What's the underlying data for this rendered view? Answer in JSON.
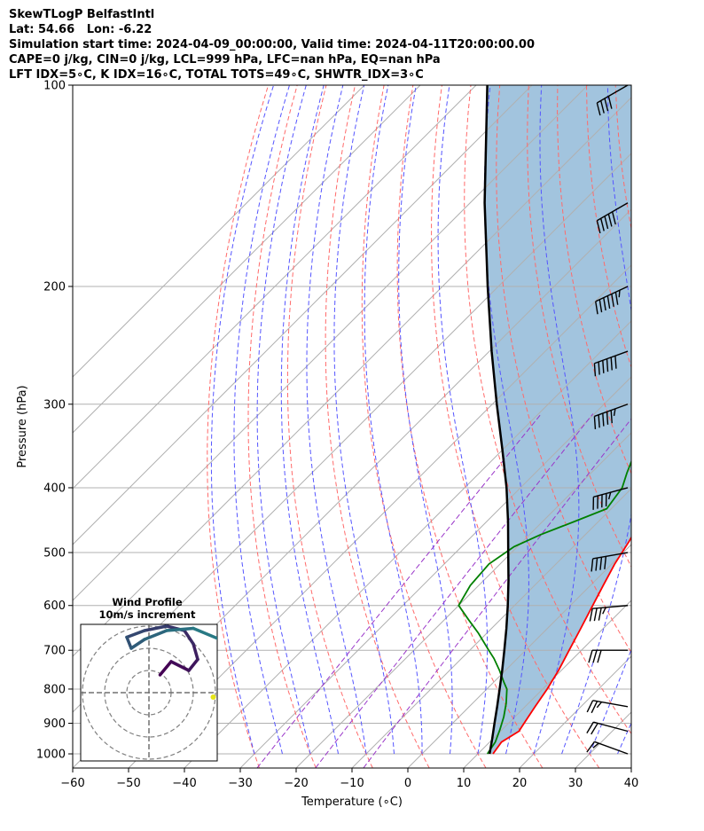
{
  "header": {
    "line1": "SkewTLogP BelfastIntl",
    "line2": "Lat: 54.66   Lon: -6.22",
    "line3": "Simulation start time: 2024-04-09_00:00:00, Valid time: 2024-04-11T20:00:00.00",
    "line4": "CAPE=0 j/kg, CIN=0 j/kg, LCL=999 hPa, LFC=nan hPa, EQ=nan hPa",
    "line5": "LFT IDX=5∘C, K IDX=16∘C, TOTAL TOTS=49∘C, SHWTR_IDX=3∘C"
  },
  "chart_data": {
    "type": "line",
    "title": "SkewTLogP BelfastIntl",
    "xlabel": "Temperature (∘C)",
    "ylabel": "Pressure (hPa)",
    "xlim": [
      -60,
      40
    ],
    "ylim": [
      1050,
      100
    ],
    "yscale": "log",
    "skew": "temperature lines skewed 45° to the right",
    "x_ticks": [
      "−60",
      "−50",
      "−40",
      "−30",
      "−20",
      "−10",
      "0",
      "10",
      "20",
      "30",
      "40"
    ],
    "y_ticks": [
      "100",
      "200",
      "300",
      "400",
      "500",
      "600",
      "700",
      "800",
      "900",
      "1000"
    ],
    "grid": true,
    "colors": {
      "temperature": "#ff0000",
      "dewpoint": "#008000",
      "parcel": "#000000",
      "shading": "#a2c4de",
      "dry_adiabat": "#ff6a6a",
      "moist_adiabat": "#5555ff",
      "mixing_ratio": "#9a36c9",
      "isotherm": "#b0b0b0",
      "wind_barb": "#000000"
    },
    "series": [
      {
        "name": "Temperature",
        "points": [
          [
            1000,
            12.7
          ],
          [
            960,
            12.1
          ],
          [
            925,
            13.3
          ],
          [
            900,
            12.8
          ],
          [
            850,
            11.8
          ],
          [
            800,
            10.8
          ],
          [
            750,
            9.5
          ],
          [
            700,
            7.8
          ],
          [
            650,
            6.0
          ],
          [
            600,
            4.0
          ],
          [
            560,
            2.3
          ],
          [
            520,
            0.5
          ],
          [
            480,
            -1.0
          ],
          [
            450,
            -2.5
          ],
          [
            420,
            -3.9
          ],
          [
            400,
            -5.0
          ],
          [
            370,
            -7.4
          ],
          [
            350,
            -9.4
          ],
          [
            320,
            -12.3
          ],
          [
            300,
            -14.4
          ],
          [
            280,
            -17.0
          ],
          [
            260,
            -19.7
          ],
          [
            245,
            -21.6
          ],
          [
            230,
            -23.9
          ],
          [
            215,
            -26.6
          ],
          [
            200,
            -29.3
          ],
          [
            185,
            -31.6
          ],
          [
            170,
            -33.3
          ],
          [
            160,
            -34.7
          ],
          [
            150,
            -36.6
          ],
          [
            140,
            -38.6
          ],
          [
            130,
            -40.7
          ],
          [
            120,
            -42.7
          ],
          [
            110,
            -44.6
          ],
          [
            100,
            -47.4
          ]
        ]
      },
      {
        "name": "Dewpoint",
        "points": [
          [
            1000,
            11.7
          ],
          [
            960,
            11.0
          ],
          [
            920,
            9.6
          ],
          [
            880,
            8.0
          ],
          [
            840,
            6.0
          ],
          [
            800,
            3.6
          ],
          [
            780,
            1.7
          ],
          [
            750,
            -1.1
          ],
          [
            720,
            -4.2
          ],
          [
            700,
            -6.6
          ],
          [
            660,
            -11.5
          ],
          [
            630,
            -15.7
          ],
          [
            600,
            -20.0
          ],
          [
            560,
            -21.5
          ],
          [
            520,
            -22.0
          ],
          [
            490,
            -20.6
          ],
          [
            470,
            -18.0
          ],
          [
            450,
            -14.4
          ],
          [
            430,
            -10.8
          ],
          [
            400,
            -11.8
          ],
          [
            380,
            -13.6
          ],
          [
            360,
            -15.3
          ],
          [
            340,
            -17.0
          ],
          [
            320,
            -19.4
          ],
          [
            300,
            -22.3
          ],
          [
            280,
            -25.0
          ],
          [
            265,
            -27.0
          ],
          [
            250,
            -29.4
          ],
          [
            235,
            -32.2
          ],
          [
            220,
            -35.0
          ],
          [
            205,
            -37.5
          ],
          [
            190,
            -40.2
          ],
          [
            180,
            -42.7
          ],
          [
            172,
            -45.9
          ],
          [
            168,
            -48.6
          ],
          [
            160,
            -50.7
          ],
          [
            150,
            -52.4
          ],
          [
            140,
            -53.7
          ],
          [
            130,
            -55.1
          ],
          [
            120,
            -56.5
          ],
          [
            110,
            -58.1
          ],
          [
            100,
            -60.1
          ]
        ]
      },
      {
        "name": "Parcel",
        "points": [
          [
            1000,
            12.1
          ],
          [
            950,
            9.9
          ],
          [
            900,
            7.5
          ],
          [
            850,
            5.0
          ],
          [
            800,
            2.3
          ],
          [
            750,
            -0.6
          ],
          [
            700,
            -3.8
          ],
          [
            650,
            -7.3
          ],
          [
            600,
            -11.2
          ],
          [
            550,
            -15.6
          ],
          [
            500,
            -20.6
          ],
          [
            450,
            -26.1
          ],
          [
            400,
            -32.5
          ],
          [
            350,
            -40.2
          ],
          [
            300,
            -49.2
          ],
          [
            250,
            -59.6
          ],
          [
            200,
            -71.9
          ],
          [
            150,
            -87.4
          ],
          [
            100,
            -108.0
          ]
        ]
      }
    ],
    "wind_barbs": {
      "pressures": [
        1000,
        925,
        850,
        700,
        600,
        500,
        400,
        300,
        250,
        200,
        150,
        100
      ],
      "direction_deg": [
        250,
        255,
        260,
        270,
        275,
        280,
        285,
        290,
        290,
        295,
        300,
        300
      ],
      "speed_kt": [
        15,
        20,
        25,
        30,
        35,
        40,
        45,
        55,
        60,
        65,
        50,
        40
      ]
    },
    "hodograph": {
      "title": "Wind Profile",
      "subtitle": "10m/s increment",
      "points": [
        [
          0.5,
          0.8
        ],
        [
          1.0,
          1.4
        ],
        [
          1.8,
          1.0
        ],
        [
          2.2,
          1.5
        ],
        [
          2.0,
          2.2
        ],
        [
          1.6,
          2.8
        ],
        [
          0.8,
          3.0
        ],
        [
          -0.2,
          2.8
        ],
        [
          -1.0,
          2.5
        ],
        [
          -0.8,
          2.0
        ],
        [
          -0.2,
          2.4
        ],
        [
          0.8,
          2.8
        ],
        [
          2.0,
          2.9
        ],
        [
          3.2,
          2.4
        ],
        [
          4.8,
          2.6
        ],
        [
          5.6,
          3.2
        ],
        [
          6.3,
          3.8
        ]
      ]
    }
  }
}
